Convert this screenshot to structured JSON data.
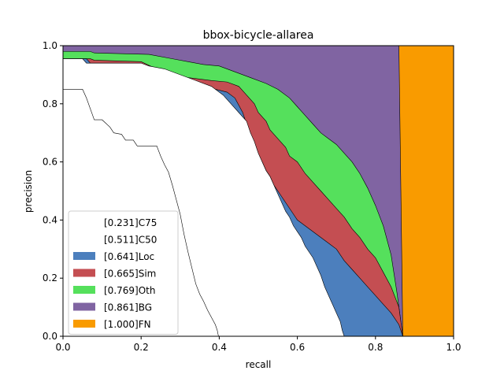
{
  "chart_data": {
    "type": "area",
    "title": "bbox-bicycle-allarea",
    "xlabel": "recall",
    "ylabel": "precision",
    "xlim": [
      0,
      1
    ],
    "ylim": [
      0,
      1
    ],
    "xticks": [
      "0.0",
      "0.2",
      "0.4",
      "0.6",
      "0.8",
      "1.0"
    ],
    "yticks": [
      "0.0",
      "0.2",
      "0.4",
      "0.6",
      "0.8",
      "1.0"
    ],
    "grid": false,
    "legend_position": "lower-left",
    "series": [
      {
        "name": "[0.231]C75",
        "color": "#ffffff",
        "points": [
          [
            0,
            0.85
          ],
          [
            0.05,
            0.85
          ],
          [
            0.06,
            0.82
          ],
          [
            0.08,
            0.745
          ],
          [
            0.1,
            0.745
          ],
          [
            0.12,
            0.72
          ],
          [
            0.13,
            0.7
          ],
          [
            0.15,
            0.695
          ],
          [
            0.16,
            0.675
          ],
          [
            0.18,
            0.675
          ],
          [
            0.19,
            0.655
          ],
          [
            0.24,
            0.655
          ],
          [
            0.25,
            0.62
          ],
          [
            0.26,
            0.59
          ],
          [
            0.27,
            0.565
          ],
          [
            0.28,
            0.52
          ],
          [
            0.29,
            0.47
          ],
          [
            0.3,
            0.42
          ],
          [
            0.31,
            0.35
          ],
          [
            0.32,
            0.29
          ],
          [
            0.33,
            0.235
          ],
          [
            0.34,
            0.18
          ],
          [
            0.35,
            0.145
          ],
          [
            0.36,
            0.12
          ],
          [
            0.37,
            0.09
          ],
          [
            0.38,
            0.065
          ],
          [
            0.39,
            0.04
          ],
          [
            0.395,
            0.02
          ],
          [
            0.398,
            0
          ]
        ]
      },
      {
        "name": "[0.511]C50",
        "color": "#ffffff",
        "points": [
          [
            0,
            0.955
          ],
          [
            0.05,
            0.955
          ],
          [
            0.06,
            0.94
          ],
          [
            0.2,
            0.94
          ],
          [
            0.22,
            0.93
          ],
          [
            0.26,
            0.92
          ],
          [
            0.3,
            0.9
          ],
          [
            0.34,
            0.88
          ],
          [
            0.38,
            0.86
          ],
          [
            0.41,
            0.83
          ],
          [
            0.43,
            0.8
          ],
          [
            0.45,
            0.77
          ],
          [
            0.47,
            0.74
          ],
          [
            0.48,
            0.7
          ],
          [
            0.49,
            0.67
          ],
          [
            0.5,
            0.63
          ],
          [
            0.51,
            0.6
          ],
          [
            0.52,
            0.57
          ],
          [
            0.53,
            0.55
          ],
          [
            0.54,
            0.52
          ],
          [
            0.55,
            0.49
          ],
          [
            0.56,
            0.46
          ],
          [
            0.57,
            0.43
          ],
          [
            0.58,
            0.41
          ],
          [
            0.59,
            0.38
          ],
          [
            0.6,
            0.36
          ],
          [
            0.61,
            0.34
          ],
          [
            0.62,
            0.31
          ],
          [
            0.63,
            0.29
          ],
          [
            0.64,
            0.27
          ],
          [
            0.65,
            0.24
          ],
          [
            0.66,
            0.21
          ],
          [
            0.67,
            0.17
          ],
          [
            0.68,
            0.14
          ],
          [
            0.69,
            0.11
          ],
          [
            0.7,
            0.08
          ],
          [
            0.71,
            0.05
          ],
          [
            0.715,
            0.02
          ],
          [
            0.72,
            0
          ]
        ]
      },
      {
        "name": "[0.641]Loc",
        "color": "#4c7fbd",
        "points": [
          [
            0,
            0.955
          ],
          [
            0.06,
            0.955
          ],
          [
            0.07,
            0.94
          ],
          [
            0.17,
            0.94
          ],
          [
            0.2,
            0.935
          ],
          [
            0.24,
            0.9
          ],
          [
            0.26,
            0.88
          ],
          [
            0.28,
            0.87
          ],
          [
            0.32,
            0.86
          ],
          [
            0.36,
            0.86
          ],
          [
            0.39,
            0.85
          ],
          [
            0.42,
            0.84
          ],
          [
            0.44,
            0.82
          ],
          [
            0.46,
            0.77
          ],
          [
            0.47,
            0.73
          ],
          [
            0.48,
            0.7
          ],
          [
            0.49,
            0.66
          ],
          [
            0.5,
            0.62
          ],
          [
            0.51,
            0.6
          ],
          [
            0.52,
            0.57
          ],
          [
            0.53,
            0.55
          ],
          [
            0.54,
            0.52
          ],
          [
            0.55,
            0.5
          ],
          [
            0.56,
            0.48
          ],
          [
            0.57,
            0.46
          ],
          [
            0.58,
            0.44
          ],
          [
            0.59,
            0.42
          ],
          [
            0.6,
            0.4
          ],
          [
            0.62,
            0.38
          ],
          [
            0.64,
            0.36
          ],
          [
            0.66,
            0.34
          ],
          [
            0.68,
            0.32
          ],
          [
            0.7,
            0.3
          ],
          [
            0.72,
            0.26
          ],
          [
            0.74,
            0.23
          ],
          [
            0.76,
            0.2
          ],
          [
            0.78,
            0.17
          ],
          [
            0.8,
            0.14
          ],
          [
            0.82,
            0.11
          ],
          [
            0.84,
            0.08
          ],
          [
            0.86,
            0.04
          ],
          [
            0.87,
            0
          ]
        ]
      },
      {
        "name": "[0.665]Sim",
        "color": "#c44e52",
        "points": [
          [
            0,
            0.955
          ],
          [
            0.07,
            0.955
          ],
          [
            0.08,
            0.95
          ],
          [
            0.2,
            0.945
          ],
          [
            0.24,
            0.92
          ],
          [
            0.28,
            0.9
          ],
          [
            0.32,
            0.89
          ],
          [
            0.38,
            0.88
          ],
          [
            0.42,
            0.875
          ],
          [
            0.45,
            0.86
          ],
          [
            0.47,
            0.83
          ],
          [
            0.49,
            0.8
          ],
          [
            0.5,
            0.77
          ],
          [
            0.52,
            0.74
          ],
          [
            0.53,
            0.71
          ],
          [
            0.55,
            0.68
          ],
          [
            0.57,
            0.65
          ],
          [
            0.58,
            0.62
          ],
          [
            0.6,
            0.6
          ],
          [
            0.62,
            0.56
          ],
          [
            0.64,
            0.53
          ],
          [
            0.66,
            0.5
          ],
          [
            0.68,
            0.47
          ],
          [
            0.7,
            0.44
          ],
          [
            0.72,
            0.41
          ],
          [
            0.74,
            0.37
          ],
          [
            0.76,
            0.34
          ],
          [
            0.78,
            0.3
          ],
          [
            0.8,
            0.27
          ],
          [
            0.82,
            0.22
          ],
          [
            0.84,
            0.17
          ],
          [
            0.86,
            0.1
          ],
          [
            0.87,
            0
          ]
        ]
      },
      {
        "name": "[0.769]Oth",
        "color": "#55e05c",
        "points": [
          [
            0,
            0.98
          ],
          [
            0.07,
            0.98
          ],
          [
            0.08,
            0.975
          ],
          [
            0.22,
            0.97
          ],
          [
            0.28,
            0.955
          ],
          [
            0.32,
            0.945
          ],
          [
            0.36,
            0.935
          ],
          [
            0.4,
            0.93
          ],
          [
            0.44,
            0.91
          ],
          [
            0.48,
            0.89
          ],
          [
            0.52,
            0.87
          ],
          [
            0.55,
            0.85
          ],
          [
            0.58,
            0.82
          ],
          [
            0.6,
            0.79
          ],
          [
            0.62,
            0.76
          ],
          [
            0.64,
            0.73
          ],
          [
            0.66,
            0.7
          ],
          [
            0.68,
            0.68
          ],
          [
            0.7,
            0.66
          ],
          [
            0.72,
            0.63
          ],
          [
            0.74,
            0.6
          ],
          [
            0.76,
            0.56
          ],
          [
            0.78,
            0.51
          ],
          [
            0.8,
            0.45
          ],
          [
            0.82,
            0.38
          ],
          [
            0.84,
            0.28
          ],
          [
            0.855,
            0.15
          ],
          [
            0.87,
            0
          ]
        ]
      },
      {
        "name": "[0.861]BG",
        "color": "#8064a2",
        "points": [
          [
            0,
            1.0
          ],
          [
            0.86,
            1.0
          ],
          [
            0.862,
            0.8
          ],
          [
            0.865,
            0.5
          ],
          [
            0.868,
            0.2
          ],
          [
            0.87,
            0
          ]
        ]
      },
      {
        "name": "[1.000]FN",
        "color": "#f99b00",
        "points": [
          [
            0,
            1.0
          ],
          [
            1.0,
            1.0
          ],
          [
            1.0,
            0
          ],
          [
            0,
            0
          ]
        ]
      }
    ]
  }
}
